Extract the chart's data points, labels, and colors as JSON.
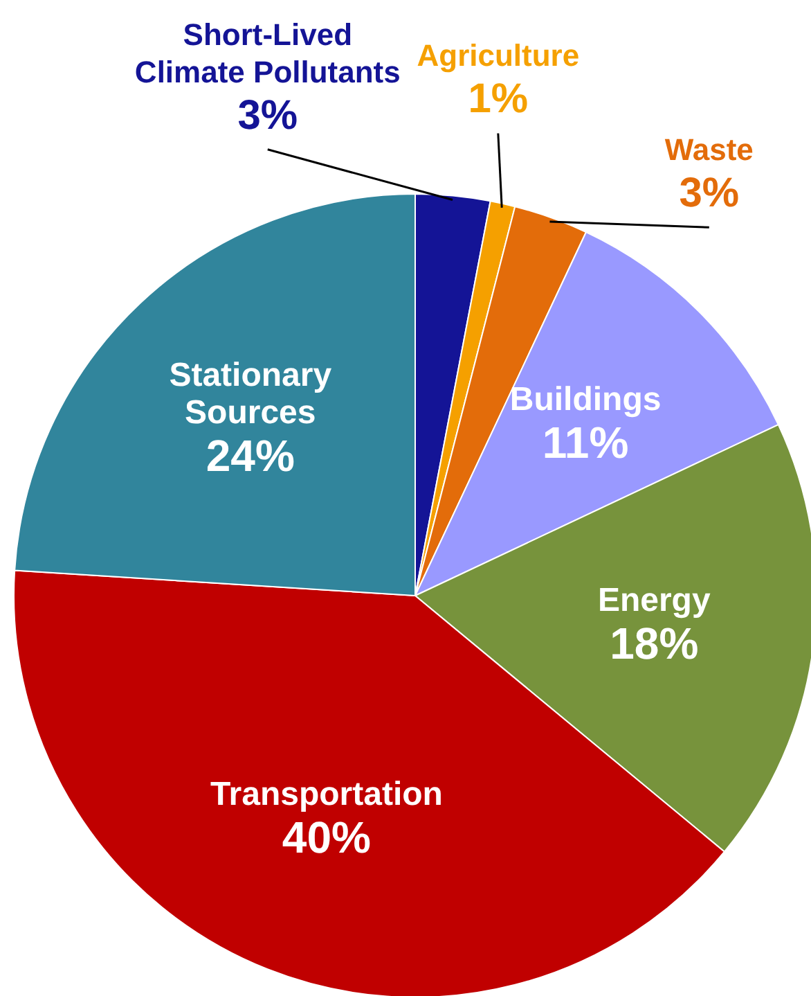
{
  "chart_data": {
    "type": "pie",
    "categories": [
      "Short-Lived\nClimate Pollutants",
      "Agriculture",
      "Waste",
      "Buildings",
      "Energy",
      "Transportation",
      "Stationary\nSources"
    ],
    "values": [
      3,
      1,
      3,
      11,
      18,
      40,
      24
    ],
    "value_labels": [
      "3%",
      "1%",
      "3%",
      "11%",
      "18%",
      "40%",
      "24%"
    ],
    "colors": [
      "#141496",
      "#f5a000",
      "#e36c0a",
      "#9999ff",
      "#77933c",
      "#c00000",
      "#31859c"
    ]
  }
}
